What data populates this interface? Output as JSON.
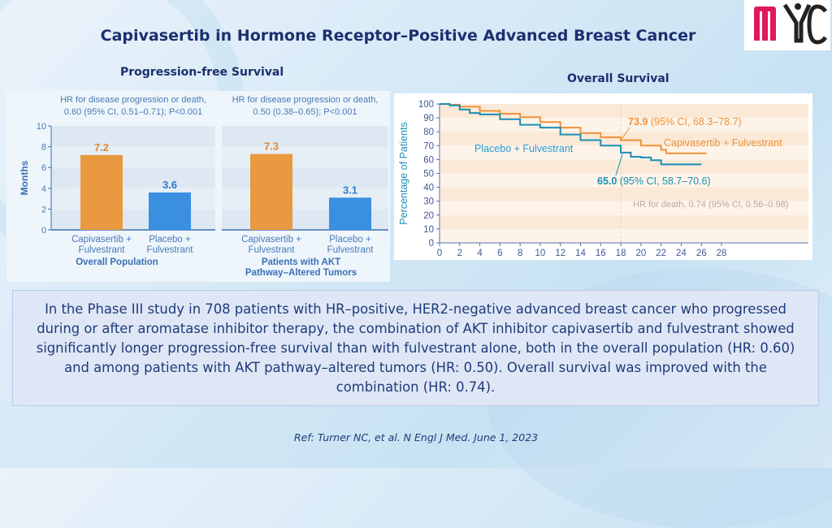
{
  "title": "Capivasertib in Hormone Receptor–Positive Advanced Breast Cancer",
  "logo_text": "MYC",
  "pfs_heading": "Progression-free Survival",
  "os_heading": "Overall Survival",
  "colors": {
    "capivasertib": "#e9993f",
    "placebo": "#3b8fe0",
    "os_capivasertib": "#f0923a",
    "os_placebo": "#1b8fb5",
    "title": "#1c2f6e"
  },
  "chart_data": [
    {
      "type": "bar",
      "title": "HR for disease progression or death, 0.60 (95% CI, 0.51–0.71); P<0.001",
      "title_lines": [
        "HR for disease progression or death,",
        "0.60 (95% CI, 0.51–0.71); P<0.001"
      ],
      "categories": [
        [
          "Capivasertib +",
          "Fulvestrant"
        ],
        [
          "Placebo +",
          "Fulvestrant"
        ]
      ],
      "values": [
        7.2,
        3.6
      ],
      "value_labels": [
        "7.2",
        "3.6"
      ],
      "xlabel": "Overall Population",
      "ylabel": "Months",
      "ylim": [
        0,
        10
      ],
      "yticks": [
        "0",
        "2",
        "4",
        "6",
        "8",
        "10"
      ],
      "grid": true
    },
    {
      "type": "bar",
      "title": "HR for disease progression or death, 0.50 (0.38–0.65); P<0.001",
      "title_lines": [
        "HR for disease progression or death,",
        "0.50 (0.38–0.65); P<0.001"
      ],
      "categories": [
        [
          "Capivasertib +",
          "Fulvestrant"
        ],
        [
          "Placebo +",
          "Fulvestrant"
        ]
      ],
      "values": [
        7.3,
        3.1
      ],
      "value_labels": [
        "7.3",
        "3.1"
      ],
      "xlabel_lines": [
        "Patients with AKT",
        "Pathway–Altered Tumors"
      ],
      "ylim": [
        0,
        10
      ],
      "grid": true
    },
    {
      "type": "line",
      "ylabel": "Percentage of Patients",
      "xlim": [
        0,
        28
      ],
      "ylim": [
        0,
        100
      ],
      "xticks": [
        "0",
        "2",
        "4",
        "6",
        "8",
        "10",
        "12",
        "14",
        "16",
        "18",
        "20",
        "22",
        "24",
        "26",
        "28"
      ],
      "yticks": [
        "0",
        "10",
        "20",
        "30",
        "40",
        "50",
        "60",
        "70",
        "80",
        "90",
        "100"
      ],
      "series": [
        {
          "name": "Capivasertib + Fulvestrant",
          "x": [
            0,
            1,
            2,
            4,
            6,
            8,
            10,
            12,
            14,
            16,
            18,
            20,
            22,
            22.5,
            26.5
          ],
          "y": [
            100,
            99.5,
            98,
            95,
            93,
            90.5,
            87,
            83,
            79,
            76,
            73.9,
            70,
            67,
            64.5,
            64.5
          ]
        },
        {
          "name": "Placebo + Fulvestrant",
          "x": [
            0,
            1,
            2,
            3,
            4,
            6,
            8,
            10,
            12,
            14,
            16,
            18,
            19,
            20,
            21,
            22,
            26
          ],
          "y": [
            100,
            99,
            96,
            93.5,
            92.5,
            89,
            85,
            83,
            78,
            74,
            70,
            65,
            62,
            61.5,
            59.5,
            56.5,
            56.5
          ]
        }
      ],
      "annotations": {
        "cap_value": "73.9",
        "cap_ci": " (95% CI, 68.3–78.7)",
        "pla_value": "65.0",
        "pla_ci": " (95% CI, 58.7–70.6)",
        "hr": "HR for death, 0.74 (95% CI, 0.56–0.98)"
      },
      "reference_month": 18
    }
  ],
  "summary": "In the Phase III study in 708  patients with HR–positive, HER2-negative advanced breast cancer who progressed during or after aromatase inhibitor therapy, the combination of AKT inhibitor capivasertib and fulvestrant showed significantly longer progression-free survival than with fulvestrant alone, both in the overall population (HR: 0.60) and among patients with AKT pathway–altered tumors (HR: 0.50). Overall survival was improved with the combination (HR: 0.74).",
  "reference": "Ref: Turner NC, et al. N Engl J Med. June 1, 2023"
}
